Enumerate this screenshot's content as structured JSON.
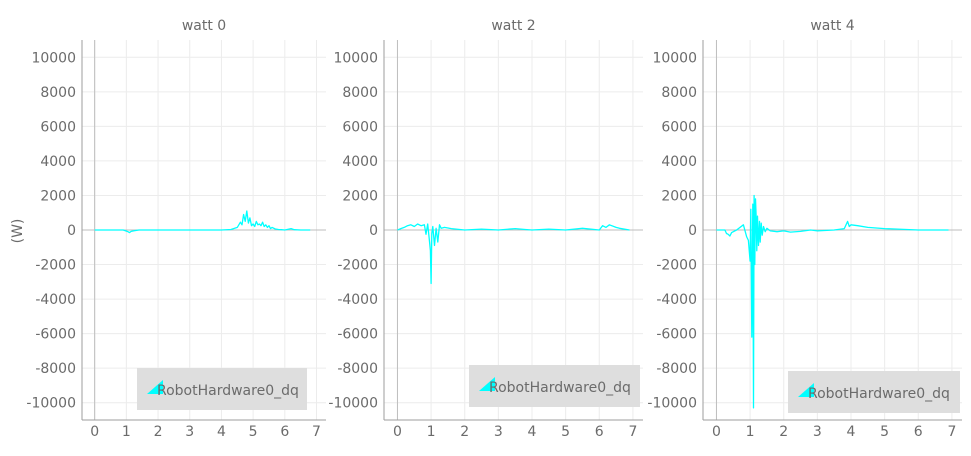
{
  "y_axis_label": "(W)",
  "chart_data": [
    {
      "type": "line",
      "title": "watt 0",
      "xlim": [
        -0.4,
        7.3
      ],
      "ylim": [
        -11000,
        11000
      ],
      "x_ticks": [
        0,
        1,
        2,
        3,
        4,
        5,
        6,
        7
      ],
      "y_ticks": [
        10000,
        8000,
        6000,
        4000,
        2000,
        0,
        -2000,
        -4000,
        -6000,
        -8000,
        -10000
      ],
      "grid": true,
      "legend": {
        "placement": "bottom-right",
        "entries": [
          "RobotHardware0_dq"
        ]
      },
      "series": [
        {
          "name": "RobotHardware0_dq",
          "color": "#00ffff",
          "x": [
            0,
            0.5,
            0.9,
            1.05,
            1.1,
            1.15,
            1.25,
            1.4,
            2,
            3,
            4,
            4.3,
            4.5,
            4.6,
            4.65,
            4.7,
            4.75,
            4.8,
            4.85,
            4.9,
            4.95,
            5.0,
            5.05,
            5.1,
            5.15,
            5.2,
            5.25,
            5.3,
            5.35,
            5.4,
            5.45,
            5.5,
            5.55,
            5.6,
            5.7,
            5.8,
            5.9,
            6.0,
            6.2,
            6.3,
            6.5,
            6.8
          ],
          "y": [
            0,
            0,
            0,
            -100,
            -150,
            -80,
            -40,
            0,
            0,
            0,
            0,
            30,
            150,
            450,
            300,
            900,
            500,
            1100,
            400,
            700,
            250,
            350,
            200,
            500,
            300,
            350,
            250,
            450,
            200,
            300,
            150,
            250,
            80,
            150,
            60,
            30,
            20,
            0,
            80,
            20,
            0,
            0
          ]
        }
      ]
    },
    {
      "type": "line",
      "title": "watt 2",
      "xlim": [
        -0.4,
        7.3
      ],
      "ylim": [
        -11000,
        11000
      ],
      "x_ticks": [
        0,
        1,
        2,
        3,
        4,
        5,
        6,
        7
      ],
      "y_ticks": [
        10000,
        8000,
        6000,
        4000,
        2000,
        0,
        -2000,
        -4000,
        -6000,
        -8000,
        -10000
      ],
      "grid": true,
      "legend": {
        "placement": "bottom-right",
        "entries": [
          "RobotHardware0_dq"
        ]
      },
      "series": [
        {
          "name": "RobotHardware0_dq",
          "color": "#00ffff",
          "x": [
            0,
            0.1,
            0.2,
            0.3,
            0.4,
            0.5,
            0.6,
            0.7,
            0.8,
            0.85,
            0.9,
            0.95,
            0.98,
            1.0,
            1.02,
            1.05,
            1.1,
            1.15,
            1.2,
            1.25,
            1.3,
            1.4,
            1.6,
            2,
            2.5,
            3,
            3.5,
            3.8,
            4,
            4.5,
            5,
            5.5,
            6,
            6.1,
            6.2,
            6.3,
            6.5,
            6.6,
            6.9
          ],
          "y": [
            0,
            80,
            150,
            250,
            300,
            200,
            350,
            250,
            300,
            -250,
            350,
            -600,
            -1200,
            -3100,
            -200,
            200,
            -900,
            100,
            -700,
            300,
            100,
            150,
            80,
            0,
            50,
            0,
            80,
            30,
            0,
            50,
            0,
            100,
            0,
            250,
            150,
            300,
            150,
            100,
            0
          ]
        }
      ]
    },
    {
      "type": "line",
      "title": "watt 4",
      "xlim": [
        -0.4,
        7.3
      ],
      "ylim": [
        -11000,
        11000
      ],
      "x_ticks": [
        0,
        1,
        2,
        3,
        4,
        5,
        6,
        7
      ],
      "y_ticks": [
        10000,
        8000,
        6000,
        4000,
        2000,
        0,
        -2000,
        -4000,
        -6000,
        -8000,
        -10000
      ],
      "grid": true,
      "legend": {
        "placement": "bottom-right",
        "entries": [
          "RobotHardware0_dq"
        ]
      },
      "series": [
        {
          "name": "RobotHardware0_dq",
          "color": "#00ffff",
          "x": [
            0,
            0.25,
            0.3,
            0.35,
            0.4,
            0.45,
            0.6,
            0.8,
            0.9,
            0.95,
            1.0,
            1.02,
            1.05,
            1.08,
            1.1,
            1.12,
            1.14,
            1.16,
            1.18,
            1.2,
            1.22,
            1.25,
            1.28,
            1.3,
            1.33,
            1.36,
            1.4,
            1.45,
            1.5,
            1.6,
            1.8,
            2.0,
            2.2,
            2.5,
            2.8,
            3.0,
            3.5,
            3.8,
            3.9,
            3.95,
            4.0,
            4.2,
            4.5,
            5.0,
            6.0,
            6.9
          ],
          "y": [
            0,
            0,
            -200,
            -250,
            -350,
            -150,
            0,
            300,
            -400,
            -600,
            -1800,
            1200,
            -6200,
            1500,
            -10300,
            2000,
            -2000,
            1800,
            900,
            -1200,
            800,
            -900,
            500,
            -700,
            400,
            -300,
            200,
            -100,
            100,
            -50,
            -100,
            -50,
            -120,
            -80,
            0,
            -50,
            0,
            80,
            500,
            200,
            300,
            250,
            150,
            80,
            0,
            0
          ]
        }
      ]
    }
  ]
}
